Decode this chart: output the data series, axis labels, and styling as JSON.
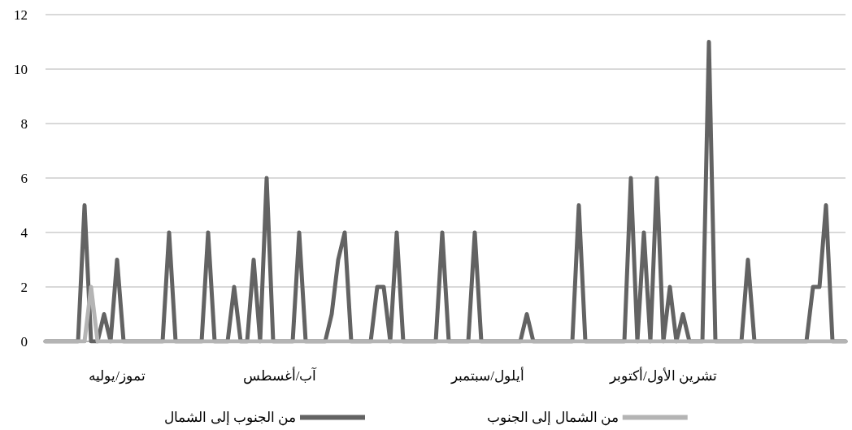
{
  "chart_data": {
    "type": "line",
    "categories": [
      null,
      null,
      null,
      null,
      null,
      null,
      null,
      null,
      null,
      null,
      null,
      "تموز/يوليه",
      null,
      null,
      null,
      null,
      null,
      null,
      null,
      null,
      null,
      null,
      null,
      null,
      null,
      null,
      null,
      null,
      null,
      null,
      null,
      null,
      null,
      null,
      null,
      null,
      "آب/أغسطس",
      null,
      null,
      null,
      null,
      null,
      null,
      null,
      null,
      null,
      null,
      null,
      null,
      null,
      null,
      null,
      null,
      null,
      null,
      null,
      null,
      null,
      null,
      null,
      null,
      null,
      null,
      null,
      null,
      null,
      null,
      null,
      "أيلول/سبتمبر",
      null,
      null,
      null,
      null,
      null,
      null,
      null,
      null,
      null,
      null,
      null,
      null,
      null,
      null,
      null,
      null,
      null,
      null,
      null,
      null,
      null,
      null,
      null,
      null,
      null,
      null,
      "تشرين الأول/أكتوبر",
      null,
      null,
      null,
      null,
      null,
      null,
      null,
      null,
      null,
      null,
      null,
      null,
      null,
      null,
      null,
      null,
      null,
      null,
      null,
      null,
      null,
      null,
      null,
      null,
      null,
      null,
      null,
      null
    ],
    "series": [
      {
        "name": "من الجنوب إلى الشمال",
        "color": "#636363",
        "values": [
          0,
          0,
          0,
          0,
          0,
          0,
          5,
          0,
          0,
          1,
          0,
          3,
          0,
          0,
          0,
          0,
          0,
          0,
          0,
          4,
          0,
          0,
          0,
          0,
          0,
          4,
          0,
          0,
          0,
          2,
          0,
          0,
          3,
          0,
          6,
          0,
          0,
          0,
          0,
          4,
          0,
          0,
          0,
          0,
          1,
          3,
          4,
          0,
          0,
          0,
          0,
          2,
          2,
          0,
          4,
          0,
          0,
          0,
          0,
          0,
          0,
          4,
          0,
          0,
          0,
          0,
          4,
          0,
          0,
          0,
          0,
          0,
          0,
          0,
          1,
          0,
          0,
          0,
          0,
          0,
          0,
          0,
          5,
          0,
          0,
          0,
          0,
          0,
          0,
          0,
          6,
          0,
          4,
          0,
          6,
          0,
          2,
          0,
          1,
          0,
          0,
          0,
          11,
          0,
          0,
          0,
          0,
          0,
          3,
          0,
          0,
          0,
          0,
          0,
          0,
          0,
          0,
          0,
          2,
          2,
          5,
          0,
          0,
          0
        ]
      },
      {
        "name": "من الشمال إلى الجنوب",
        "color": "#b4b4b4",
        "values": [
          0,
          0,
          0,
          0,
          0,
          0,
          0,
          2,
          0,
          0,
          0,
          0,
          0,
          0,
          0,
          0,
          0,
          0,
          0,
          0,
          0,
          0,
          0,
          0,
          0,
          0,
          0,
          0,
          0,
          0,
          0,
          0,
          0,
          0,
          0,
          0,
          0,
          0,
          0,
          0,
          0,
          0,
          0,
          0,
          0,
          0,
          0,
          0,
          0,
          0,
          0,
          0,
          0,
          0,
          0,
          0,
          0,
          0,
          0,
          0,
          0,
          0,
          0,
          0,
          0,
          0,
          0,
          0,
          0,
          0,
          0,
          0,
          0,
          0,
          0,
          0,
          0,
          0,
          0,
          0,
          0,
          0,
          0,
          0,
          0,
          0,
          0,
          0,
          0,
          0,
          0,
          0,
          0,
          0,
          0,
          0,
          0,
          0,
          0,
          0,
          0,
          0,
          0,
          0,
          0,
          0,
          0,
          0,
          0,
          0,
          0,
          0,
          0,
          0,
          0,
          0,
          0,
          0,
          0,
          0,
          0,
          0,
          0,
          0
        ]
      }
    ],
    "ylim": [
      0,
      12
    ],
    "yticks": [
      0,
      2,
      4,
      6,
      8,
      10,
      12
    ],
    "grid": "y",
    "legend": "bottom",
    "marker": "none",
    "line_style": "solid"
  }
}
